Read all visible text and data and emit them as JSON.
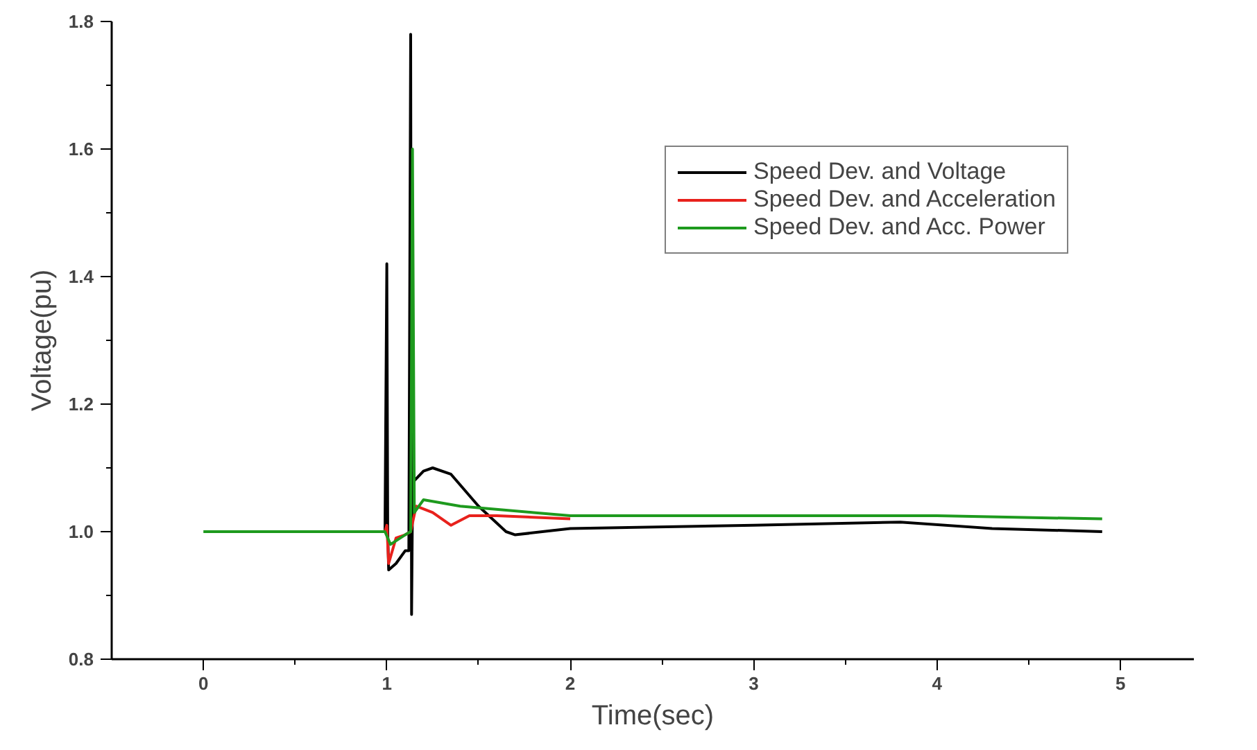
{
  "chart_data": {
    "type": "line",
    "xlabel": "Time(sec)",
    "ylabel": "Voltage(pu)",
    "xlim": [
      -0.5,
      5.4
    ],
    "ylim": [
      0.8,
      1.8
    ],
    "xticks": [
      0,
      1,
      2,
      3,
      4,
      5
    ],
    "yticks": [
      {
        "value": 0.8,
        "label": "0.8"
      },
      {
        "value": 1.0,
        "label": "1.0"
      },
      {
        "value": 1.2,
        "label": "1.2"
      },
      {
        "value": 1.4,
        "label": "1.4"
      },
      {
        "value": 1.6,
        "label": "1.6"
      },
      {
        "value": 1.8,
        "label": "1.8"
      }
    ],
    "grid": false,
    "legend": "top right",
    "line_style": "solid",
    "marker": "none",
    "series": [
      {
        "name": "Speed Dev. and Voltage",
        "color": "#000000",
        "x": [
          0.99,
          1.0,
          1.005,
          1.01,
          1.05,
          1.1,
          1.12,
          1.13,
          1.135,
          1.14,
          1.15,
          1.2,
          1.25,
          1.35,
          1.5,
          1.65,
          1.7,
          2,
          3,
          3.8,
          4.3,
          4.9
        ],
        "values": [
          1.0,
          1.42,
          1.0,
          0.94,
          0.95,
          0.97,
          0.97,
          1.78,
          0.87,
          1.05,
          1.08,
          1.095,
          1.1,
          1.09,
          1.04,
          1.0,
          0.995,
          1.005,
          1.01,
          1.015,
          1.005,
          1.0
        ]
      },
      {
        "name": "Speed Dev. and Acceleration",
        "color": "#e8211c",
        "x": [
          0.99,
          1.0,
          1.01,
          1.05,
          1.1,
          1.13,
          1.16,
          1.25,
          1.35,
          1.45,
          1.6,
          2
        ],
        "values": [
          1.0,
          1.01,
          0.95,
          0.99,
          0.995,
          1.0,
          1.04,
          1.03,
          1.01,
          1.025,
          1.025,
          1.02
        ]
      },
      {
        "name": "Speed Dev. and Acc. Power",
        "color": "#1e9a1e",
        "x": [
          0,
          0.5,
          0.99,
          1.02,
          1.1,
          1.13,
          1.14,
          1.15,
          1.2,
          1.4,
          1.8,
          2,
          3,
          4,
          4.9
        ],
        "values": [
          1.0,
          1.0,
          1.0,
          0.98,
          0.995,
          1.0,
          1.6,
          1.03,
          1.05,
          1.04,
          1.03,
          1.025,
          1.025,
          1.025,
          1.02
        ]
      }
    ]
  }
}
